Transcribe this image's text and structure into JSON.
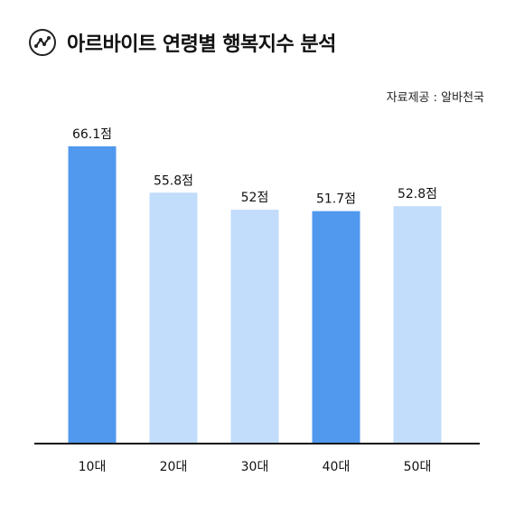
{
  "header": {
    "title": "아르바이트 연령별 행복지수 분석",
    "source": "자료제공 : 알바천국"
  },
  "colors": {
    "highlight": "#5199EE",
    "normal": "#C2DCFB",
    "axis": "#111111"
  },
  "chart_data": {
    "type": "bar",
    "title": "아르바이트 연령별 행복지수 분석",
    "categories": [
      "10대",
      "20대",
      "30대",
      "40대",
      "50대"
    ],
    "values": [
      66.1,
      55.8,
      52,
      51.7,
      52.8
    ],
    "value_labels": [
      "66.1점",
      "55.8점",
      "52점",
      "51.7점",
      "52.8점"
    ],
    "highlighted": [
      true,
      false,
      false,
      true,
      false
    ],
    "ylim": [
      0,
      66.1
    ],
    "xlabel": "",
    "ylabel": "",
    "grid": false,
    "legend": "none"
  }
}
